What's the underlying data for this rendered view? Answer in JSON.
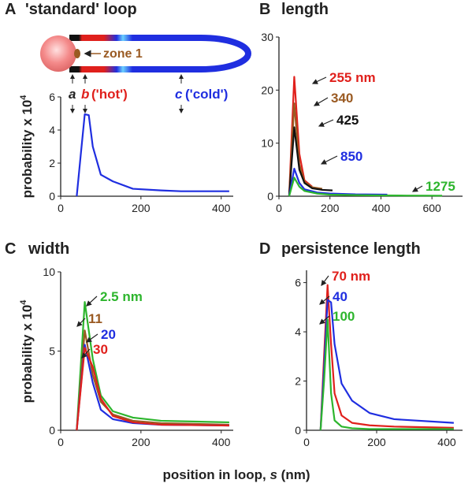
{
  "xlabel": {
    "before": "position in loop, ",
    "var": "s",
    "after": " (nm)"
  },
  "diagram": {
    "zone": "zone 1",
    "a": "a",
    "b": "b",
    "b_note": "('hot')",
    "c": "c",
    "c_note": "('cold')"
  },
  "chart_data": [
    {
      "type": "line",
      "label": "A",
      "title": "'standard' loop",
      "ylabel": {
        "text": "probability x 10",
        "superscript": "4"
      },
      "xlim": [
        0,
        430
      ],
      "xticks": [
        0,
        200,
        400
      ],
      "ylim": [
        0,
        6
      ],
      "yticks": [
        0,
        2,
        4,
        6
      ],
      "series": [
        {
          "name": null,
          "color": "#1f2ee0",
          "x": [
            40,
            50,
            60,
            70,
            80,
            100,
            130,
            180,
            250,
            300,
            420
          ],
          "values": [
            0,
            2.5,
            4.95,
            4.9,
            3,
            1.3,
            0.9,
            0.45,
            0.35,
            0.3,
            0.3
          ]
        }
      ]
    },
    {
      "type": "line",
      "label": "B",
      "title": "length",
      "xlim": [
        0,
        720
      ],
      "xticks": [
        0,
        200,
        400,
        600
      ],
      "ylim": [
        0,
        30
      ],
      "yticks": [
        0,
        10,
        20,
        30
      ],
      "series": [
        {
          "name": "255 nm",
          "color": "#e0201c",
          "x": [
            40,
            60,
            80,
            100,
            130
          ],
          "values": [
            0,
            22.5,
            8,
            3,
            1.8
          ]
        },
        {
          "name": "340",
          "color": "#9a5a22",
          "x": [
            40,
            60,
            80,
            100,
            130,
            170
          ],
          "values": [
            0,
            17.5,
            6,
            2.7,
            1.7,
            1.4
          ]
        },
        {
          "name": "425",
          "color": "#111111",
          "x": [
            40,
            60,
            80,
            100,
            130,
            170,
            210
          ],
          "values": [
            0,
            13,
            5,
            2.5,
            1.5,
            1.2,
            1.1
          ]
        },
        {
          "name": "850",
          "color": "#1f2ee0",
          "x": [
            40,
            60,
            80,
            100,
            150,
            200,
            300,
            425
          ],
          "values": [
            0,
            5.2,
            2.5,
            1.3,
            0.7,
            0.5,
            0.35,
            0.3
          ]
        },
        {
          "name": "1275",
          "color": "#2db52d",
          "x": [
            40,
            60,
            80,
            100,
            150,
            200,
            300,
            400,
            500,
            640
          ],
          "values": [
            0,
            3.5,
            1.8,
            1,
            0.5,
            0.3,
            0.2,
            0.15,
            0.12,
            0.1
          ]
        }
      ]
    },
    {
      "type": "line",
      "label": "C",
      "title": "width",
      "ylabel": {
        "text": "probability x 10",
        "superscript": "4"
      },
      "xlim": [
        0,
        430
      ],
      "xticks": [
        0,
        200,
        400
      ],
      "ylim": [
        0,
        10
      ],
      "yticks": [
        0,
        5,
        10
      ],
      "series": [
        {
          "name": "2.5 nm",
          "color": "#2db52d",
          "x": [
            40,
            60,
            80,
            100,
            130,
            180,
            250,
            420
          ],
          "values": [
            0,
            8.1,
            4.5,
            2.2,
            1.2,
            0.8,
            0.6,
            0.5
          ]
        },
        {
          "name": "11",
          "color": "#9a5a22",
          "x": [
            40,
            60,
            80,
            100,
            130,
            180,
            250,
            420
          ],
          "values": [
            0,
            6.3,
            3.5,
            1.8,
            1,
            0.6,
            0.45,
            0.35
          ]
        },
        {
          "name": "20",
          "color": "#1f2ee0",
          "x": [
            40,
            60,
            80,
            100,
            130,
            180,
            250,
            420
          ],
          "values": [
            0,
            5.4,
            3,
            1.3,
            0.7,
            0.45,
            0.35,
            0.3
          ]
        },
        {
          "name": "30",
          "color": "#e0201c",
          "x": [
            40,
            60,
            80,
            100,
            130,
            180,
            250,
            420
          ],
          "values": [
            0,
            5.2,
            4,
            2,
            0.9,
            0.5,
            0.35,
            0.3
          ]
        }
      ]
    },
    {
      "type": "line",
      "label": "D",
      "title": "persistence length",
      "xlim": [
        0,
        445
      ],
      "xticks": [
        0,
        200,
        400
      ],
      "ylim": [
        0,
        6.5
      ],
      "yticks": [
        0,
        2,
        4,
        6
      ],
      "series": [
        {
          "name": "70 nm",
          "color": "#e0201c",
          "x": [
            40,
            50,
            60,
            70,
            80,
            100,
            130,
            180,
            250,
            420
          ],
          "values": [
            0,
            3,
            5.9,
            3.5,
            1.5,
            0.6,
            0.3,
            0.2,
            0.15,
            0.1
          ]
        },
        {
          "name": "40",
          "color": "#1f2ee0",
          "x": [
            40,
            50,
            60,
            70,
            80,
            100,
            130,
            180,
            250,
            420
          ],
          "values": [
            0,
            2.5,
            5.3,
            5.2,
            3.5,
            1.9,
            1.2,
            0.7,
            0.45,
            0.3
          ]
        },
        {
          "name": "100",
          "color": "#2db52d",
          "x": [
            40,
            50,
            60,
            70,
            80,
            100,
            130,
            180,
            250,
            420
          ],
          "values": [
            0,
            2,
            4.5,
            1.5,
            0.4,
            0.15,
            0.08,
            0.05,
            0.05,
            0.05
          ]
        }
      ]
    }
  ]
}
